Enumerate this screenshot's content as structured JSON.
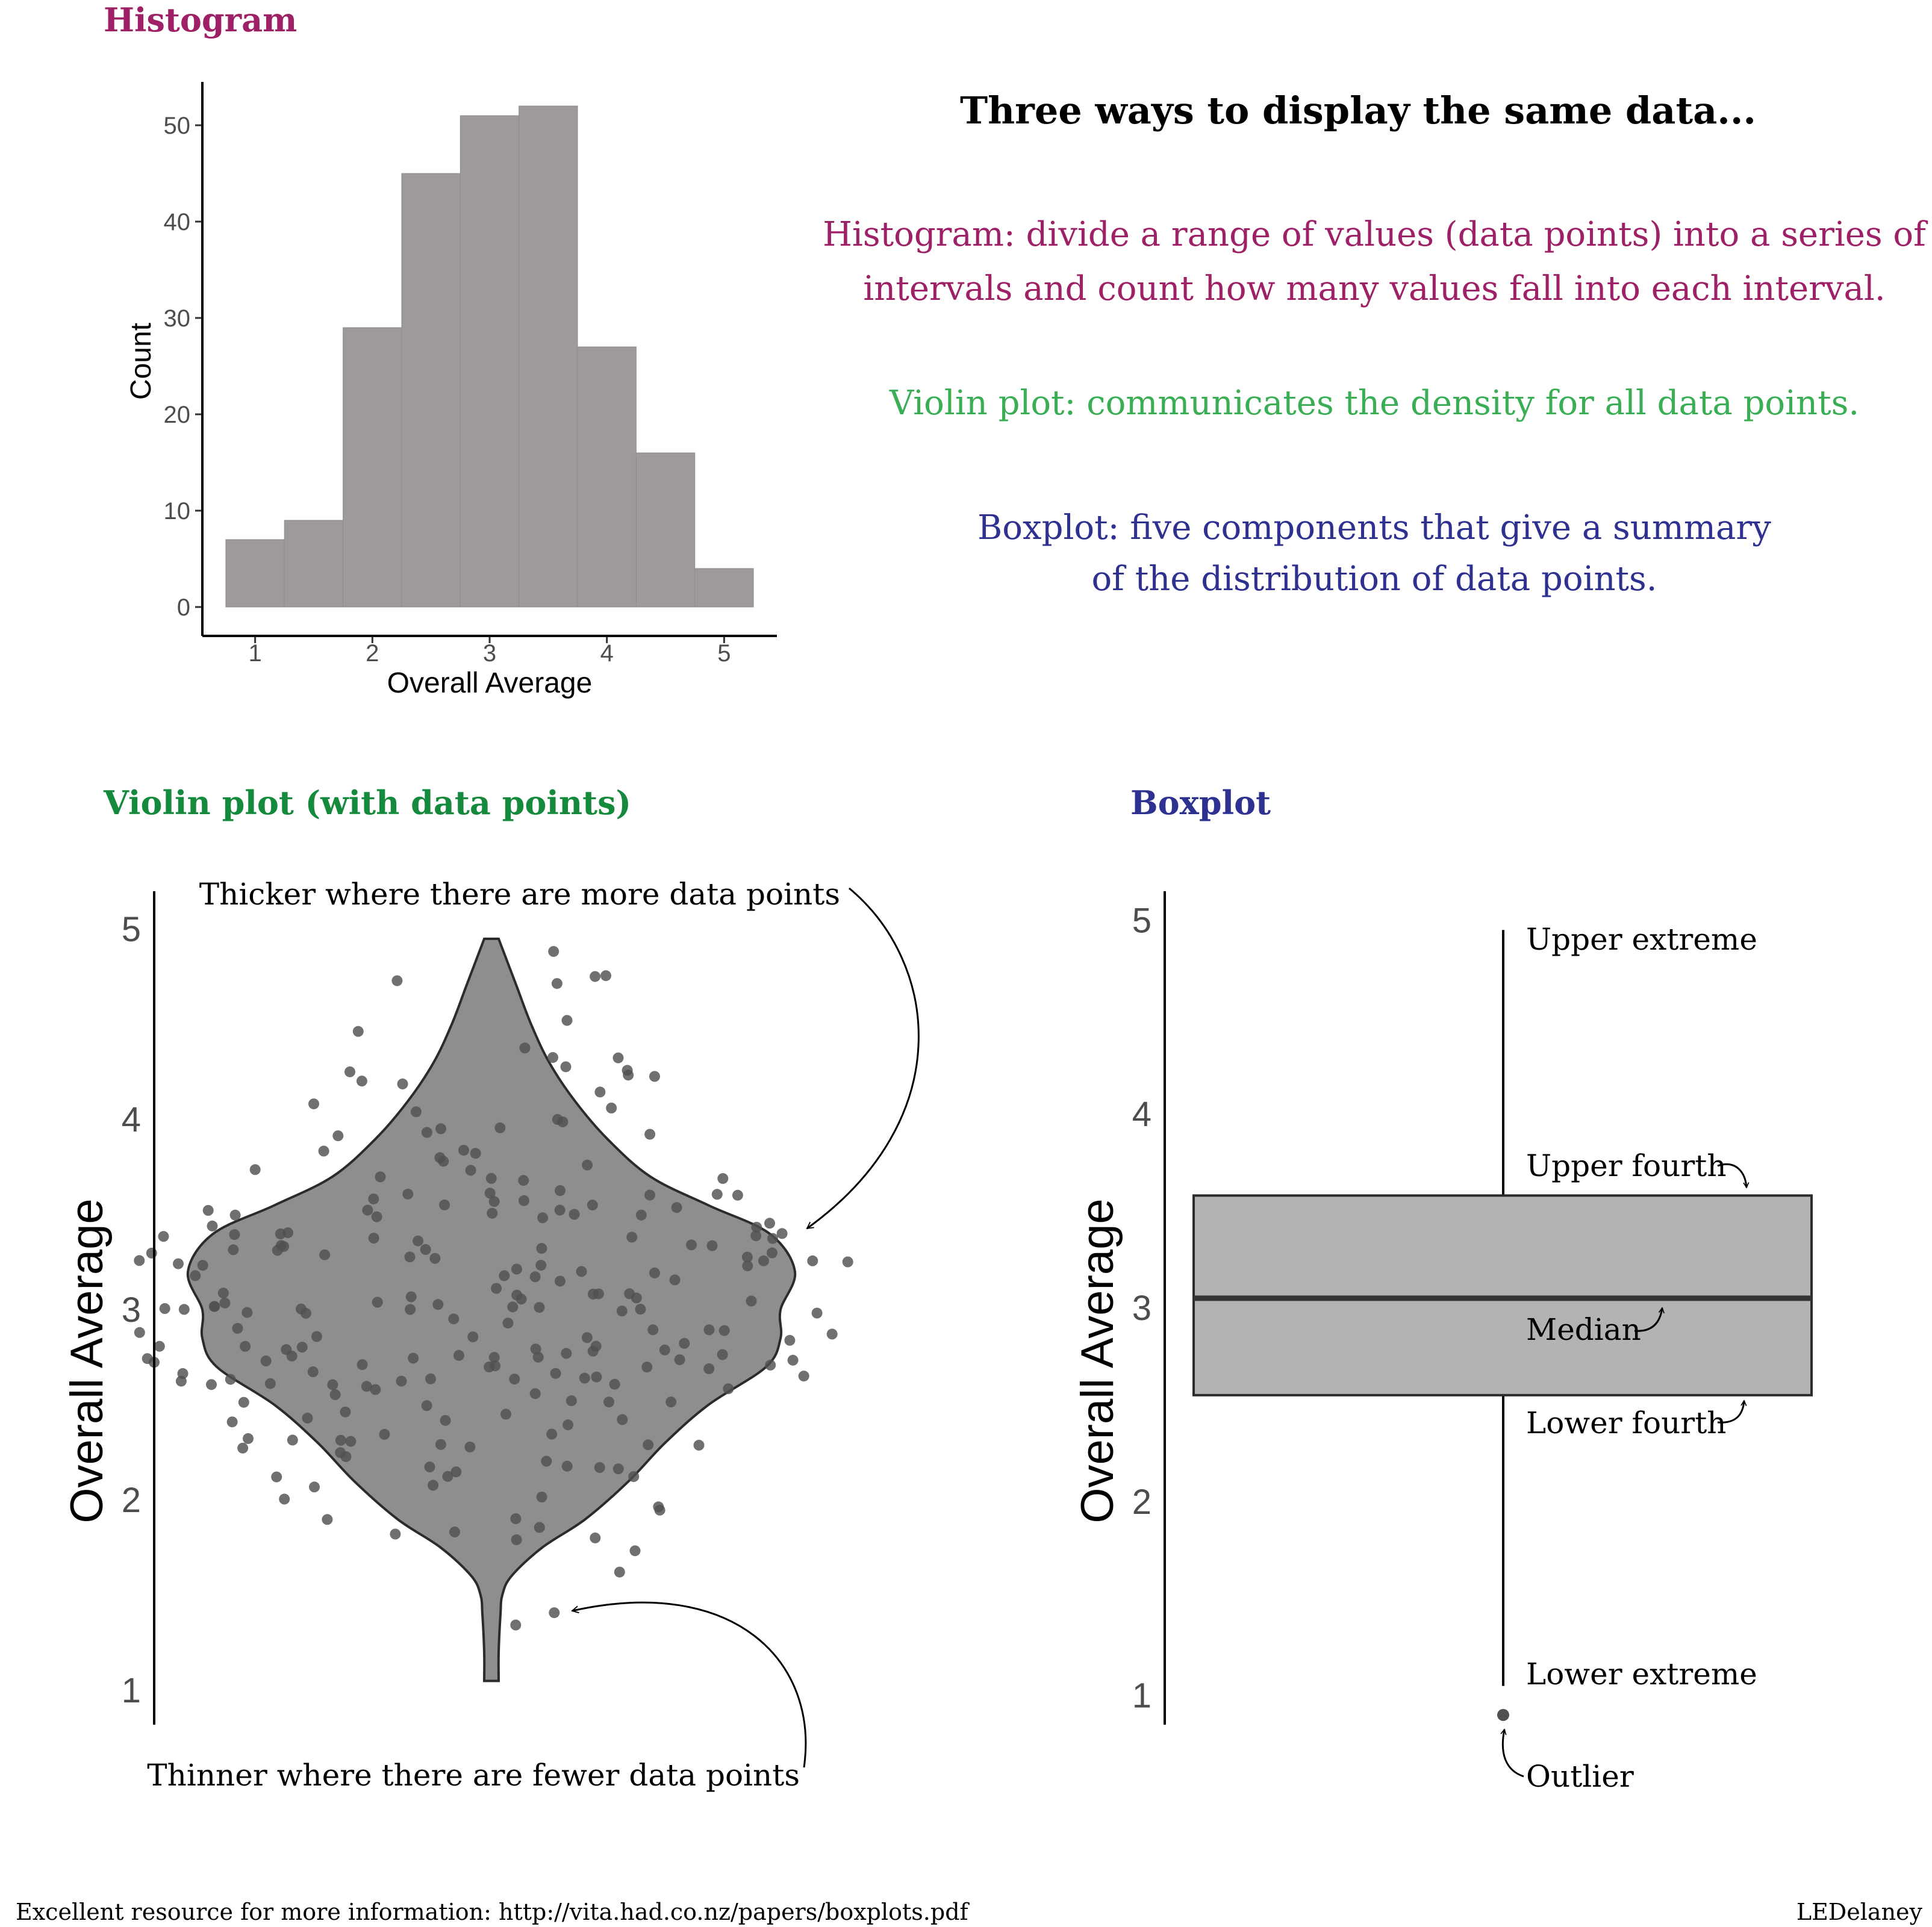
{
  "texts": {
    "main_title": "Three ways to display the same data...",
    "histogram_desc": [
      "Histogram: divide a range of values (data points) into a series of",
      "intervals and count how many values fall into each interval."
    ],
    "violin_desc": "Violin plot: communicates the density for all data points.",
    "boxplot_desc": [
      "Boxplot: five components that give a summary",
      "of the distribution of data points."
    ],
    "footer_left": "Excellent resource for more information: http://vita.had.co.nz/papers/boxplots.pdf",
    "footer_right": "LEDelaney"
  },
  "colors": {
    "histogram": "#9e2066",
    "violin": "#3aae55",
    "violin_title": "#168a3c",
    "boxplot": "#2e3190",
    "bar_fill": "#9d9a99",
    "violin_fill": "#8e8e8e",
    "box_fill": "#b3b3b3",
    "point": "#505050",
    "axis": "#000000",
    "tick_text": "#4d4d4d"
  },
  "chart_data": [
    {
      "type": "bar",
      "panel_title": "Histogram",
      "xlabel": "Overall Average",
      "ylabel": "Count",
      "bin_edges": [
        0.75,
        1.25,
        1.75,
        2.25,
        2.75,
        3.25,
        3.75,
        4.25,
        4.75,
        5.25
      ],
      "values": [
        7,
        9,
        29,
        45,
        51,
        52,
        27,
        16,
        4
      ],
      "xticks": [
        "1",
        "2",
        "3",
        "4",
        "5"
      ],
      "yticks": [
        "0",
        "10",
        "20",
        "30",
        "40",
        "50"
      ],
      "xlim": [
        0.55,
        5.45
      ],
      "ylim": [
        0,
        54.5
      ]
    },
    {
      "type": "scatter",
      "subtype": "violin",
      "panel_title": "Violin plot (with data points)",
      "ylabel": "Overall Average",
      "yticks": [
        "1",
        "2",
        "3",
        "4",
        "5"
      ],
      "ylim": [
        0.82,
        5.2
      ],
      "y_min": 1.05,
      "y_max": 4.95,
      "density_profile": [
        [
          1.05,
          0.02
        ],
        [
          1.2,
          0.02
        ],
        [
          1.4,
          0.025
        ],
        [
          1.5,
          0.03
        ],
        [
          1.6,
          0.055
        ],
        [
          1.75,
          0.14
        ],
        [
          1.9,
          0.26
        ],
        [
          2.1,
          0.38
        ],
        [
          2.3,
          0.48
        ],
        [
          2.5,
          0.6
        ],
        [
          2.7,
          0.76
        ],
        [
          2.85,
          0.8
        ],
        [
          3.0,
          0.8
        ],
        [
          3.2,
          0.84
        ],
        [
          3.4,
          0.77
        ],
        [
          3.55,
          0.6
        ],
        [
          3.7,
          0.44
        ],
        [
          3.9,
          0.32
        ],
        [
          4.1,
          0.23
        ],
        [
          4.3,
          0.16
        ],
        [
          4.5,
          0.11
        ],
        [
          4.7,
          0.07
        ],
        [
          4.9,
          0.03
        ],
        [
          4.95,
          0.02
        ]
      ],
      "annotations": [
        "Thicker where there are more data points",
        "Thinner where there are fewer data points"
      ]
    },
    {
      "type": "boxplot",
      "panel_title": "Boxplot",
      "ylabel": "Overall Average",
      "yticks": [
        "1",
        "2",
        "3",
        "4",
        "5"
      ],
      "ylim": [
        0.85,
        5.15
      ],
      "lower_extreme": 1.05,
      "lower_fourth": 2.55,
      "median": 3.05,
      "upper_fourth": 3.58,
      "upper_extreme": 4.95,
      "outliers": [
        0.9
      ],
      "labels": {
        "upper_extreme": "Upper extreme",
        "upper_fourth": "Upper fourth",
        "median": "Median",
        "lower_fourth": "Lower fourth",
        "lower_extreme": "Lower extreme",
        "outlier": "Outlier"
      }
    }
  ]
}
